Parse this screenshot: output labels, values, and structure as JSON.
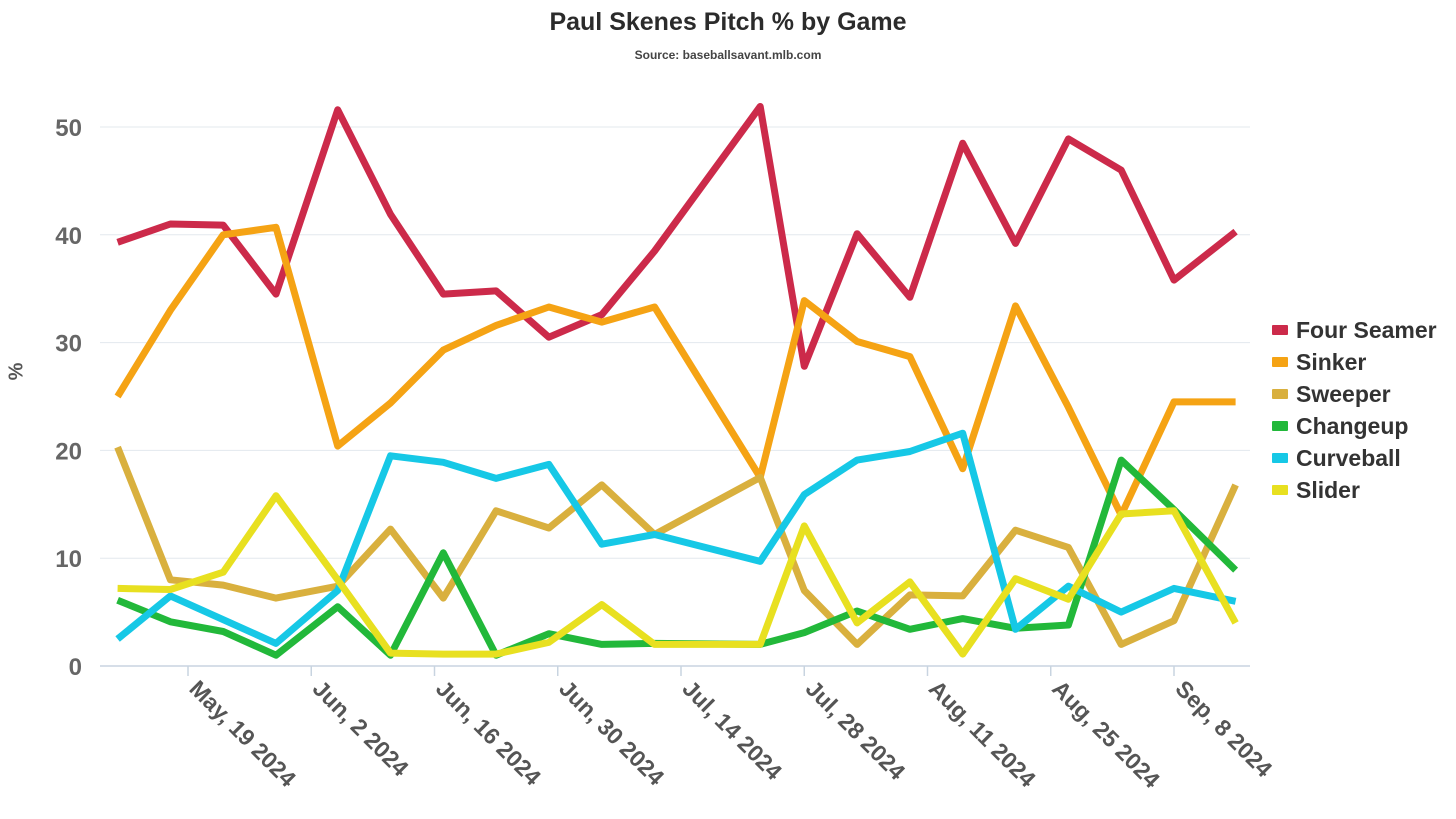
{
  "chart_data": {
    "type": "line",
    "title": "Paul Skenes Pitch % by Game",
    "subtitle": "Source: baseballsavant.mlb.com",
    "xlabel": "",
    "ylabel": "%",
    "ylim": [
      0,
      54
    ],
    "yticks": [
      0,
      10,
      20,
      30,
      40,
      50
    ],
    "xlim": [
      "2024-05-11",
      "2024-09-15"
    ],
    "xticks": [
      {
        "date": "2024-05-19",
        "label": "May, 19 2024"
      },
      {
        "date": "2024-06-02",
        "label": "Jun, 2 2024"
      },
      {
        "date": "2024-06-16",
        "label": "Jun, 16 2024"
      },
      {
        "date": "2024-06-30",
        "label": "Jun, 30 2024"
      },
      {
        "date": "2024-07-14",
        "label": "Jul, 14 2024"
      },
      {
        "date": "2024-07-28",
        "label": "Jul, 28 2024"
      },
      {
        "date": "2024-08-11",
        "label": "Aug, 11 2024"
      },
      {
        "date": "2024-08-25",
        "label": "Aug, 25 2024"
      },
      {
        "date": "2024-09-08",
        "label": "Sep, 8 2024"
      }
    ],
    "x": [
      "2024-05-11",
      "2024-05-17",
      "2024-05-23",
      "2024-05-29",
      "2024-06-05",
      "2024-06-11",
      "2024-06-17",
      "2024-06-23",
      "2024-06-29",
      "2024-07-05",
      "2024-07-11",
      "2024-07-23",
      "2024-07-28",
      "2024-08-03",
      "2024-08-09",
      "2024-08-15",
      "2024-08-21",
      "2024-08-27",
      "2024-09-02",
      "2024-09-08",
      "2024-09-15"
    ],
    "grid": true,
    "legend_position": "right",
    "series": [
      {
        "name": "Four Seamer",
        "color": "#cc2a4a",
        "points": [
          [
            "2024-05-11",
            39.3
          ],
          [
            "2024-05-17",
            41.0
          ],
          [
            "2024-05-23",
            40.9
          ],
          [
            "2024-05-29",
            34.5
          ],
          [
            "2024-06-05",
            51.6
          ],
          [
            "2024-06-11",
            41.9
          ],
          [
            "2024-06-17",
            34.5
          ],
          [
            "2024-06-23",
            34.8
          ],
          [
            "2024-06-29",
            30.5
          ],
          [
            "2024-07-05",
            32.6
          ],
          [
            "2024-07-11",
            38.5
          ],
          [
            "2024-07-23",
            51.9
          ],
          [
            "2024-07-28",
            27.8
          ],
          [
            "2024-08-03",
            40.1
          ],
          [
            "2024-08-09",
            34.2
          ],
          [
            "2024-08-15",
            48.5
          ],
          [
            "2024-08-21",
            39.2
          ],
          [
            "2024-08-27",
            48.9
          ],
          [
            "2024-09-02",
            46.0
          ],
          [
            "2024-09-08",
            35.8
          ],
          [
            "2024-09-15",
            40.3
          ]
        ]
      },
      {
        "name": "Sinker",
        "color": "#f5a314",
        "points": [
          [
            "2024-05-11",
            25.0
          ],
          [
            "2024-05-17",
            33.0
          ],
          [
            "2024-05-23",
            40.0
          ],
          [
            "2024-05-29",
            40.7
          ],
          [
            "2024-06-05",
            20.4
          ],
          [
            "2024-06-11",
            24.4
          ],
          [
            "2024-06-17",
            29.3
          ],
          [
            "2024-06-23",
            31.6
          ],
          [
            "2024-06-29",
            33.3
          ],
          [
            "2024-07-05",
            31.9
          ],
          [
            "2024-07-11",
            33.3
          ],
          [
            "2024-07-23",
            17.5
          ],
          [
            "2024-07-28",
            33.9
          ],
          [
            "2024-08-03",
            30.1
          ],
          [
            "2024-08-09",
            28.7
          ],
          [
            "2024-08-15",
            18.3
          ],
          [
            "2024-08-21",
            33.4
          ],
          [
            "2024-08-27",
            24.0
          ],
          [
            "2024-09-02",
            14.0
          ],
          [
            "2024-09-08",
            24.5
          ],
          [
            "2024-09-15",
            24.5
          ]
        ]
      },
      {
        "name": "Sweeper",
        "color": "#d9b03e",
        "points": [
          [
            "2024-05-11",
            20.3
          ],
          [
            "2024-05-17",
            8.0
          ],
          [
            "2024-05-23",
            7.5
          ],
          [
            "2024-05-29",
            6.3
          ],
          [
            "2024-06-05",
            7.4
          ],
          [
            "2024-06-11",
            12.7
          ],
          [
            "2024-06-17",
            6.3
          ],
          [
            "2024-06-23",
            14.4
          ],
          [
            "2024-06-29",
            12.8
          ],
          [
            "2024-07-05",
            16.8
          ],
          [
            "2024-07-11",
            12.2
          ],
          [
            "2024-07-23",
            17.5
          ],
          [
            "2024-07-28",
            7.0
          ],
          [
            "2024-08-03",
            2.0
          ],
          [
            "2024-08-09",
            6.6
          ],
          [
            "2024-08-15",
            6.5
          ],
          [
            "2024-08-21",
            12.6
          ],
          [
            "2024-08-27",
            11.0
          ],
          [
            "2024-09-02",
            2.0
          ],
          [
            "2024-09-08",
            4.2
          ],
          [
            "2024-09-15",
            16.8
          ]
        ]
      },
      {
        "name": "Changeup",
        "color": "#22b83a",
        "points": [
          [
            "2024-05-11",
            6.1
          ],
          [
            "2024-05-17",
            4.1
          ],
          [
            "2024-05-23",
            3.2
          ],
          [
            "2024-05-29",
            1.0
          ],
          [
            "2024-06-05",
            5.5
          ],
          [
            "2024-06-11",
            1.0
          ],
          [
            "2024-06-17",
            10.5
          ],
          [
            "2024-06-23",
            1.0
          ],
          [
            "2024-06-29",
            3.0
          ],
          [
            "2024-07-05",
            2.0
          ],
          [
            "2024-07-11",
            2.1
          ],
          [
            "2024-07-23",
            2.0
          ],
          [
            "2024-07-28",
            3.1
          ],
          [
            "2024-08-03",
            5.1
          ],
          [
            "2024-08-09",
            3.4
          ],
          [
            "2024-08-15",
            4.4
          ],
          [
            "2024-08-21",
            3.5
          ],
          [
            "2024-08-27",
            3.8
          ],
          [
            "2024-09-02",
            19.1
          ],
          [
            "2024-09-08",
            14.5
          ],
          [
            "2024-09-15",
            8.9
          ]
        ]
      },
      {
        "name": "Curveball",
        "color": "#16c8e6",
        "points": [
          [
            "2024-05-11",
            2.5
          ],
          [
            "2024-05-17",
            6.5
          ],
          [
            "2024-05-29",
            2.1
          ],
          [
            "2024-06-05",
            7.0
          ],
          [
            "2024-06-11",
            19.5
          ],
          [
            "2024-06-17",
            18.9
          ],
          [
            "2024-06-23",
            17.4
          ],
          [
            "2024-06-29",
            18.7
          ],
          [
            "2024-07-05",
            11.3
          ],
          [
            "2024-07-11",
            12.2
          ],
          [
            "2024-07-23",
            9.7
          ],
          [
            "2024-07-28",
            15.9
          ],
          [
            "2024-08-03",
            19.1
          ],
          [
            "2024-08-09",
            19.9
          ],
          [
            "2024-08-15",
            21.6
          ],
          [
            "2024-08-21",
            3.4
          ],
          [
            "2024-08-27",
            7.4
          ],
          [
            "2024-09-02",
            5.0
          ],
          [
            "2024-09-08",
            7.2
          ],
          [
            "2024-09-15",
            6.0
          ]
        ]
      },
      {
        "name": "Slider",
        "color": "#e8e020",
        "points": [
          [
            "2024-05-11",
            7.2
          ],
          [
            "2024-05-17",
            7.1
          ],
          [
            "2024-05-23",
            8.7
          ],
          [
            "2024-05-29",
            15.8
          ],
          [
            "2024-06-05",
            8.0
          ],
          [
            "2024-06-11",
            1.2
          ],
          [
            "2024-06-17",
            1.1
          ],
          [
            "2024-06-23",
            1.1
          ],
          [
            "2024-06-29",
            2.2
          ],
          [
            "2024-07-05",
            5.7
          ],
          [
            "2024-07-11",
            2.0
          ],
          [
            "2024-07-23",
            2.0
          ],
          [
            "2024-07-28",
            13.0
          ],
          [
            "2024-08-03",
            4.0
          ],
          [
            "2024-08-09",
            7.8
          ],
          [
            "2024-08-15",
            1.1
          ],
          [
            "2024-08-21",
            8.1
          ],
          [
            "2024-08-27",
            6.2
          ],
          [
            "2024-09-02",
            14.1
          ],
          [
            "2024-09-08",
            14.4
          ],
          [
            "2024-09-15",
            4.0
          ]
        ]
      }
    ]
  }
}
